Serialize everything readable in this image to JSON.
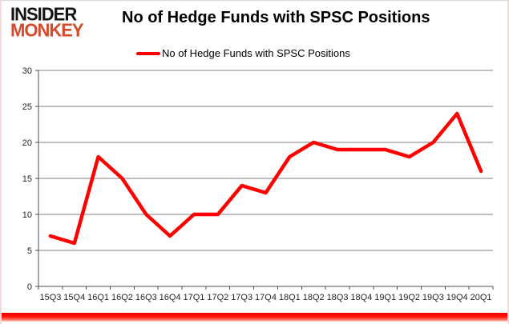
{
  "logo": {
    "line1": "INSIDER",
    "line2": "MONKEY"
  },
  "title": "No of Hedge Funds with SPSC Positions",
  "legend": {
    "label": "No of Hedge Funds with SPSC Positions",
    "marker_color": "#ff0000"
  },
  "colors": {
    "line": "#ff0000",
    "grid": "#808080",
    "axis": "#4d4d4d",
    "tick_label": "#262626",
    "logo_black": "#141414",
    "logo_red": "#d64a2c",
    "bottom_bar": "#ff0000",
    "frame_border": "#f6dada"
  },
  "chart_data": {
    "type": "line",
    "categories": [
      "15Q3",
      "15Q4",
      "16Q1",
      "16Q2",
      "16Q3",
      "16Q4",
      "17Q1",
      "17Q2",
      "17Q3",
      "17Q4",
      "18Q1",
      "18Q2",
      "18Q3",
      "18Q4",
      "19Q1",
      "19Q2",
      "19Q3",
      "19Q4",
      "20Q1"
    ],
    "series": [
      {
        "name": "No of Hedge Funds with SPSC Positions",
        "values": [
          7,
          6,
          18,
          15,
          10,
          7,
          10,
          10,
          14,
          13,
          18,
          20,
          19,
          19,
          19,
          18,
          20,
          24,
          16
        ]
      }
    ],
    "title": "No of Hedge Funds with SPSC Positions",
    "xlabel": "",
    "ylabel": "",
    "ylim": [
      0,
      30
    ],
    "yticks": [
      0,
      5,
      10,
      15,
      20,
      25,
      30
    ],
    "grid": true,
    "legend_position": "top"
  }
}
